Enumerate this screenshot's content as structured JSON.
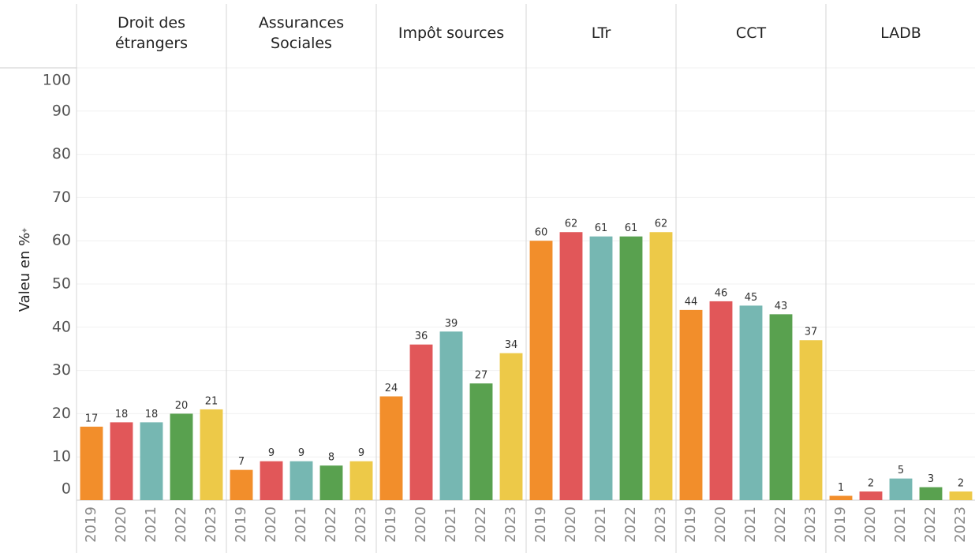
{
  "chart_data": {
    "type": "bar",
    "y_label": "Valeu en %",
    "categories": [
      "Droit des étrangers",
      "Assurances Sociales",
      "Impôt sources",
      "LTr",
      "CCT",
      "LADB"
    ],
    "series": [
      {
        "name": "2019",
        "color": "#f28e2b",
        "values": [
          17,
          7,
          24,
          60,
          44,
          1
        ]
      },
      {
        "name": "2020",
        "color": "#e15759",
        "values": [
          18,
          9,
          36,
          62,
          46,
          2
        ]
      },
      {
        "name": "2021",
        "color": "#76b7b2",
        "values": [
          18,
          9,
          39,
          61,
          45,
          5
        ]
      },
      {
        "name": "2022",
        "color": "#59a14f",
        "values": [
          20,
          8,
          27,
          61,
          43,
          3
        ]
      },
      {
        "name": "2023",
        "color": "#edc948",
        "values": [
          21,
          9,
          34,
          62,
          37,
          2
        ]
      }
    ],
    "ylim": [
      0,
      100
    ],
    "yticks": [
      0,
      10,
      20,
      30,
      40,
      50,
      60,
      70,
      80,
      90,
      100
    ],
    "grid": true
  }
}
